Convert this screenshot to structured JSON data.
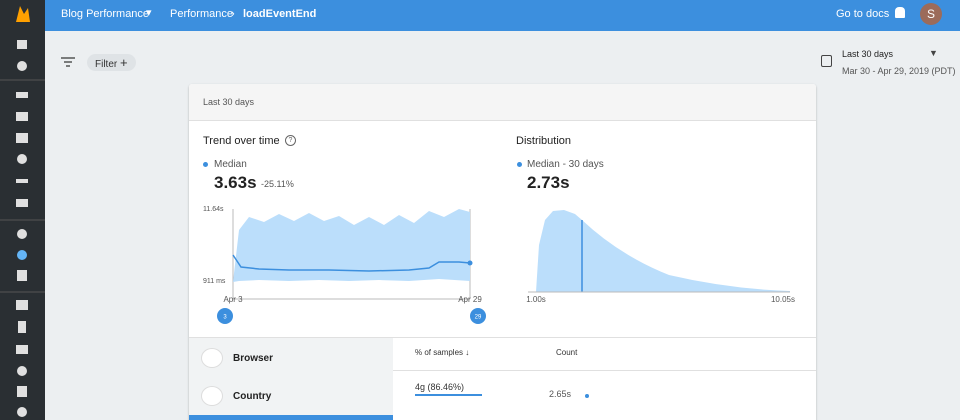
{
  "topbar": {
    "project": "Blog Performance",
    "breadcrumb": [
      "Performance",
      "loadEventEnd"
    ],
    "docs": "Go to docs",
    "avatar": "S"
  },
  "filter": {
    "label": "Filter"
  },
  "date_range": {
    "label": "Last 30 days",
    "range": "Mar 30 - Apr 29, 2019 (PDT)"
  },
  "card": {
    "header": "Last 30 days",
    "trend": {
      "title": "Trend over time",
      "legend": "Median",
      "value": "3.63s",
      "change": "-25.11%",
      "y_labels": [
        "11.64s",
        "911 ms"
      ],
      "x_labels": [
        "Apr 3",
        "Apr 29"
      ],
      "markers": [
        "3",
        "29"
      ]
    },
    "distribution": {
      "title": "Distribution",
      "legend": "Median - 30 days",
      "value": "2.73s",
      "x_labels": [
        "1.00s",
        "10.05s"
      ]
    },
    "tabs": [
      "Browser",
      "Country"
    ],
    "table": {
      "columns": [
        "% of samples",
        "Count"
      ],
      "rows": [
        [
          "4g (86.46%)",
          "2.65s"
        ]
      ]
    }
  }
}
